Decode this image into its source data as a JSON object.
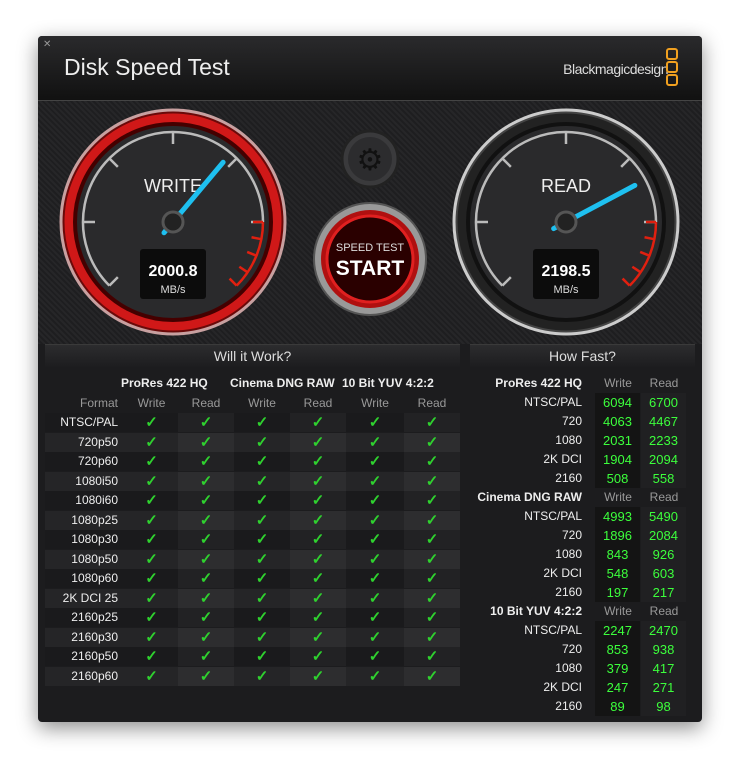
{
  "window": {
    "title": "Disk Speed Test",
    "brand": "Blackmagicdesign",
    "close_icon": "close-icon"
  },
  "gauges": {
    "write": {
      "label": "WRITE",
      "value": "2000.8",
      "unit": "MB/s"
    },
    "read": {
      "label": "READ",
      "value": "2198.5",
      "unit": "MB/s"
    },
    "needle_color": "#1ec0f0"
  },
  "controls": {
    "settings_icon": "gear-icon",
    "start_top": "SPEED TEST",
    "start_label": "START"
  },
  "will_it_work": {
    "title": "Will it Work?",
    "format_header": "Format",
    "groups": [
      "ProRes 422 HQ",
      "Cinema DNG RAW",
      "10 Bit YUV 4:2:2"
    ],
    "sub_headers": [
      "Write",
      "Read"
    ],
    "formats": [
      "NTSC/PAL",
      "720p50",
      "720p60",
      "1080i50",
      "1080i60",
      "1080p25",
      "1080p30",
      "1080p50",
      "1080p60",
      "2K DCI 25",
      "2160p25",
      "2160p30",
      "2160p50",
      "2160p60"
    ],
    "all_supported": true,
    "check_color": "#2fd12f"
  },
  "how_fast": {
    "title": "How Fast?",
    "sub_headers": [
      "Write",
      "Read"
    ],
    "groups": [
      {
        "name": "ProRes 422 HQ",
        "rows": [
          [
            "NTSC/PAL",
            "6094",
            "6700"
          ],
          [
            "720",
            "4063",
            "4467"
          ],
          [
            "1080",
            "2031",
            "2233"
          ],
          [
            "2K DCI",
            "1904",
            "2094"
          ],
          [
            "2160",
            "508",
            "558"
          ]
        ]
      },
      {
        "name": "Cinema DNG RAW",
        "rows": [
          [
            "NTSC/PAL",
            "4993",
            "5490"
          ],
          [
            "720",
            "1896",
            "2084"
          ],
          [
            "1080",
            "843",
            "926"
          ],
          [
            "2K DCI",
            "548",
            "603"
          ],
          [
            "2160",
            "197",
            "217"
          ]
        ]
      },
      {
        "name": "10 Bit YUV 4:2:2",
        "rows": [
          [
            "NTSC/PAL",
            "2247",
            "2470"
          ],
          [
            "720",
            "853",
            "938"
          ],
          [
            "1080",
            "379",
            "417"
          ],
          [
            "2K DCI",
            "247",
            "271"
          ],
          [
            "2160",
            "89",
            "98"
          ]
        ]
      }
    ],
    "value_color": "#3cff3c"
  }
}
